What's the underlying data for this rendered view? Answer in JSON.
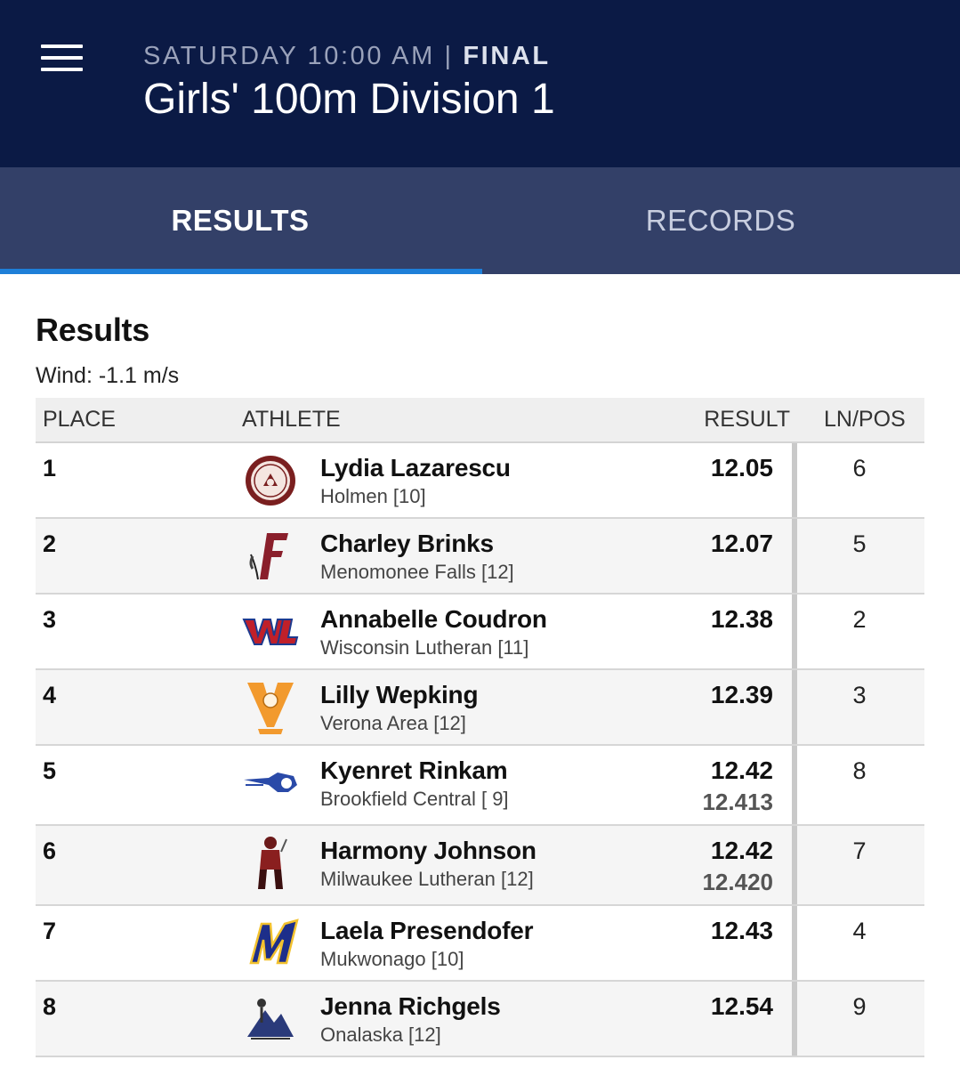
{
  "header": {
    "day_time": "SATURDAY 10:00 AM",
    "separator": "|",
    "status": "FINAL",
    "title": "Girls' 100m Division 1"
  },
  "tabs": [
    {
      "label": "RESULTS",
      "active": true
    },
    {
      "label": "RECORDS",
      "active": false
    }
  ],
  "section": {
    "title": "Results",
    "wind": "Wind: -1.1 m/s"
  },
  "columns": {
    "place": "PLACE",
    "athlete": "ATHLETE",
    "result": "RESULT",
    "lnpos": "LN/POS"
  },
  "rows": [
    {
      "place": "1",
      "name": "Lydia Lazarescu",
      "team": "Holmen [10]",
      "result": "12.05",
      "result_precise": "",
      "lane": "6",
      "logo": "holmen-seal-logo"
    },
    {
      "place": "2",
      "name": "Charley Brinks",
      "team": "Menomonee Falls [12]",
      "result": "12.07",
      "result_precise": "",
      "lane": "5",
      "logo": "menomonee-falls-f-logo"
    },
    {
      "place": "3",
      "name": "Annabelle Coudron",
      "team": "Wisconsin Lutheran [11]",
      "result": "12.38",
      "result_precise": "",
      "lane": "2",
      "logo": "wisconsin-lutheran-wl-logo"
    },
    {
      "place": "4",
      "name": "Lilly Wepking",
      "team": "Verona Area [12]",
      "result": "12.39",
      "result_precise": "",
      "lane": "3",
      "logo": "verona-v-logo"
    },
    {
      "place": "5",
      "name": "Kyenret Rinkam",
      "team": "Brookfield Central [ 9]",
      "result": "12.42",
      "result_precise": "12.413",
      "lane": "8",
      "logo": "brookfield-central-logo"
    },
    {
      "place": "6",
      "name": "Harmony Johnson",
      "team": "Milwaukee Lutheran [12]",
      "result": "12.42",
      "result_precise": "12.420",
      "lane": "7",
      "logo": "milwaukee-lutheran-knight-logo"
    },
    {
      "place": "7",
      "name": "Laela Presendofer",
      "team": "Mukwonago [10]",
      "result": "12.43",
      "result_precise": "",
      "lane": "4",
      "logo": "mukwonago-m-logo"
    },
    {
      "place": "8",
      "name": "Jenna Richgels",
      "team": "Onalaska [12]",
      "result": "12.54",
      "result_precise": "",
      "lane": "9",
      "logo": "onalaska-logo"
    }
  ],
  "colors": {
    "appbar": "#0b1a45",
    "tabbar": "#334068",
    "indicator": "#1e7fd8"
  }
}
